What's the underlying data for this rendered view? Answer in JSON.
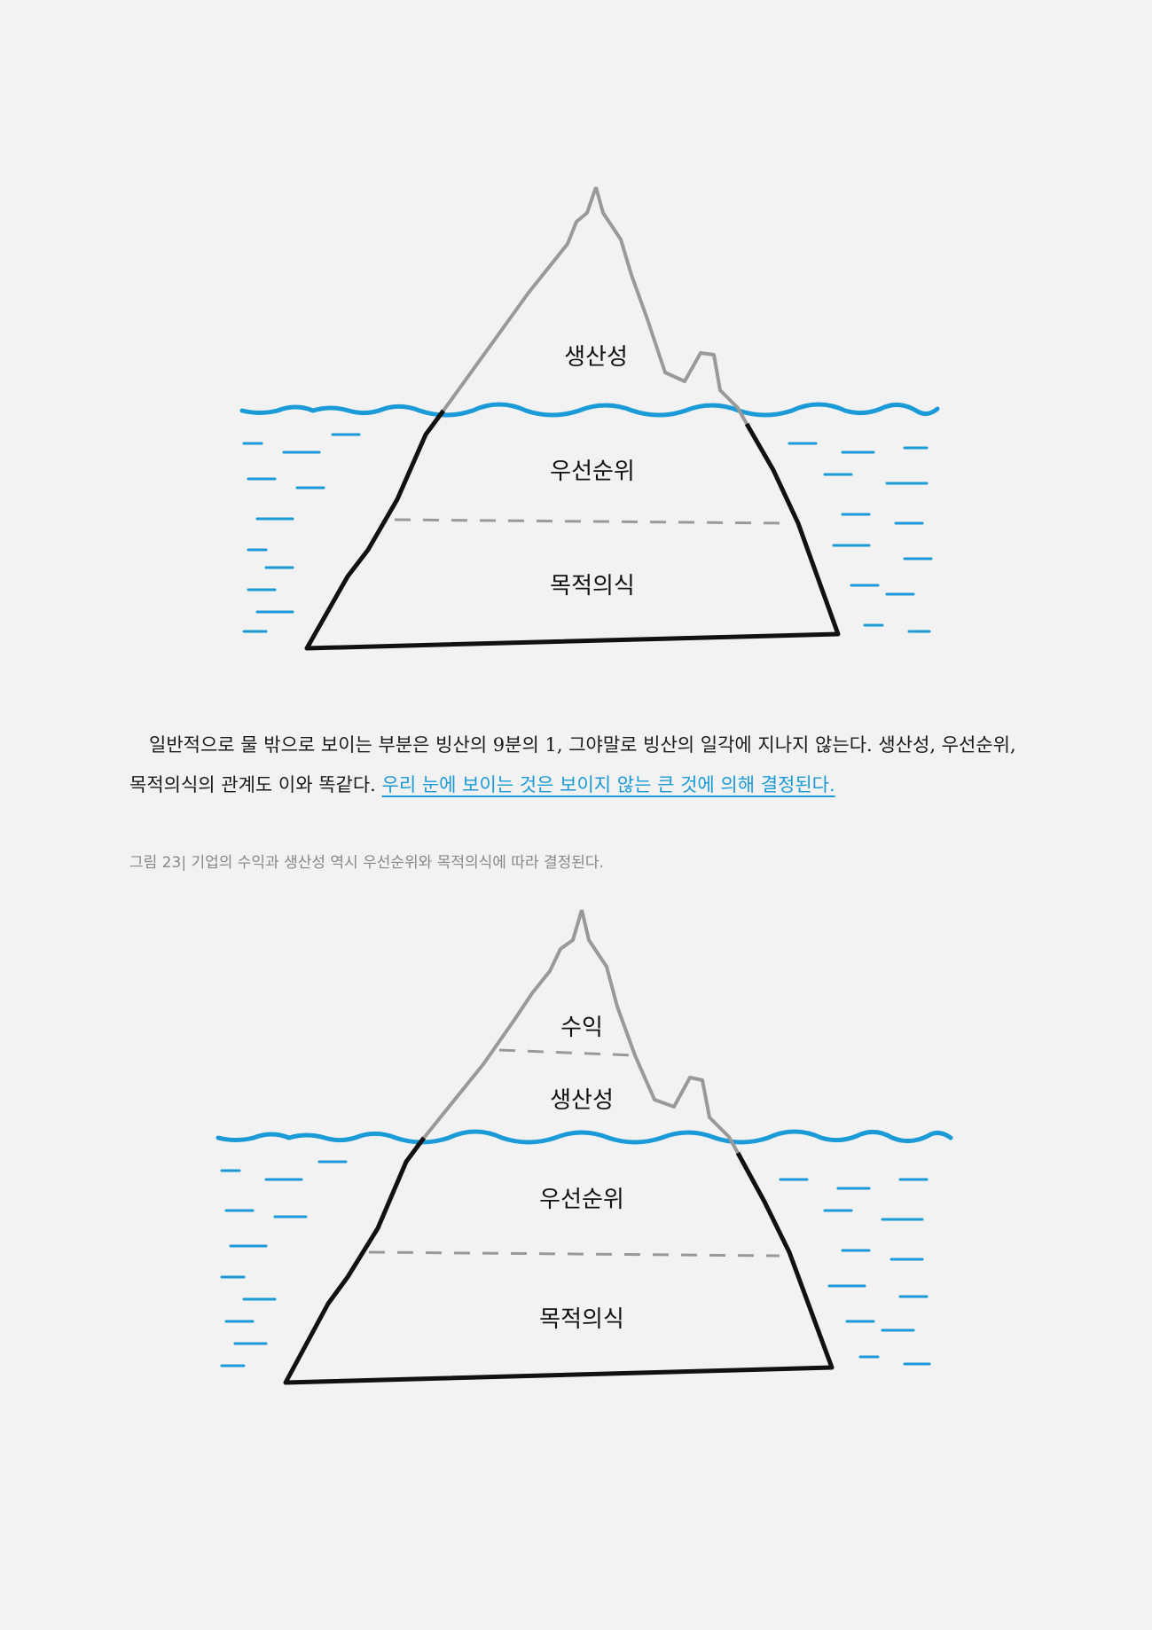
{
  "figure1": {
    "labels": [
      "생산성",
      "우선순위",
      "목적의식"
    ]
  },
  "paragraph": {
    "text": "일반적으로 물 밖으로 보이는 부분은 빙산의 9분의 1, 그야말로 빙산의 일각에 지나지 않는다. 생산성, 우선순위, 목적의식의 관계도 이와 똑같다. ",
    "highlight": "우리 눈에 보이는 것은 보이지 않는 큰 것에 의해 결정된다."
  },
  "caption": "그림 23| 기업의 수익과 생산성 역시 우선순위와 목적의식에 따라 결정된다.",
  "figure2": {
    "labels": [
      "수익",
      "생산성",
      "우선순위",
      "목적의식"
    ]
  },
  "colors": {
    "water": "#1a9ad6",
    "ink": "#111111",
    "above_water": "#999999",
    "highlight_text": "#1a9ad6"
  }
}
